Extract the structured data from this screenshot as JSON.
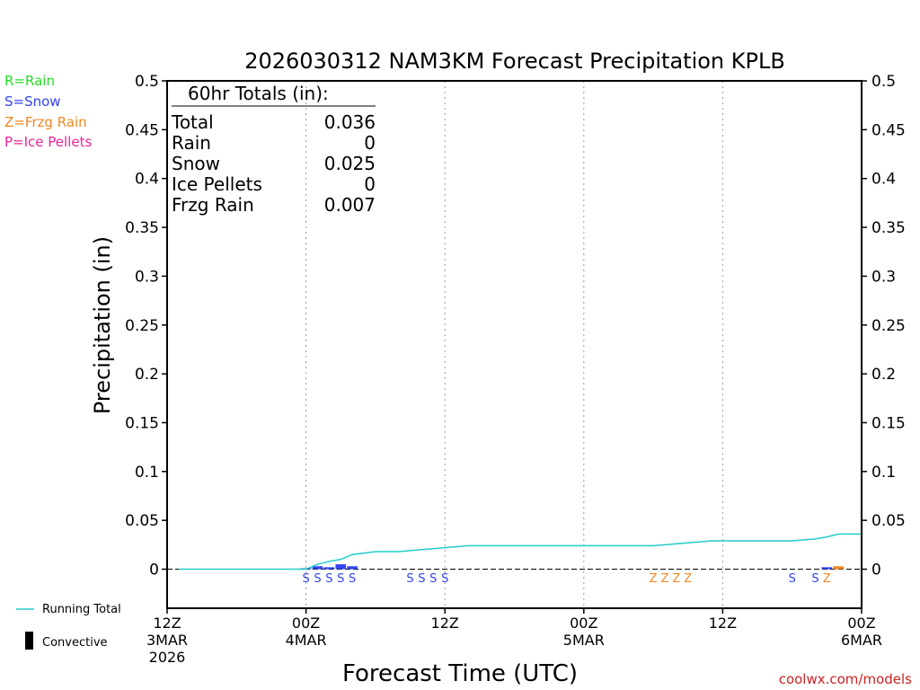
{
  "colors": {
    "rain": "#22dd22",
    "snow": "#3344ee",
    "frzg_rain": "#ee8822",
    "ice_pellets": "#ee2299",
    "running_total": "#22cccc",
    "axis": "#000000",
    "grid": "#999999",
    "credit": "#cc2222"
  },
  "legend_left": {
    "rain": "R=Rain",
    "snow": "S=Snow",
    "frzg_rain": "Z=Frzg Rain",
    "ice_pellets": "P=Ice Pellets"
  },
  "legend_bottom": {
    "running_total": "Running Total",
    "convective": "Convective"
  },
  "totals_box": {
    "header": "60hr Totals (in):",
    "rows": [
      {
        "label": "Total",
        "value": "0.036"
      },
      {
        "label": "Rain",
        "value": "0"
      },
      {
        "label": "Snow",
        "value": "0.025"
      },
      {
        "label": "Ice Pellets",
        "value": "0"
      },
      {
        "label": "Frzg Rain",
        "value": "0.007"
      }
    ]
  },
  "credit": "coolwx.com/models",
  "chart_data": {
    "type": "line",
    "title": "2026030312 NAM3KM Forecast Precipitation KPLB",
    "xlabel": "Forecast Time (UTC)",
    "ylabel": "Precipitation (in)",
    "x_unit": "forecast hour",
    "xlim": [
      0,
      60
    ],
    "ylim": [
      -0.04,
      0.5
    ],
    "y_ticks": [
      0,
      0.05,
      0.1,
      0.15,
      0.2,
      0.25,
      0.3,
      0.35,
      0.4,
      0.45,
      0.5
    ],
    "y_tick_labels": [
      "0",
      "0.05",
      "0.1",
      "0.15",
      "0.2",
      "0.25",
      "0.3",
      "0.35",
      "0.4",
      "0.45",
      "0.5"
    ],
    "x_ticks": [
      {
        "x": 0,
        "lines": [
          "12Z",
          "3MAR",
          "2026"
        ]
      },
      {
        "x": 12,
        "lines": [
          "00Z",
          "4MAR"
        ]
      },
      {
        "x": 24,
        "lines": [
          "12Z"
        ]
      },
      {
        "x": 36,
        "lines": [
          "00Z",
          "5MAR"
        ]
      },
      {
        "x": 48,
        "lines": [
          "12Z"
        ]
      },
      {
        "x": 60,
        "lines": [
          "00Z",
          "6MAR"
        ]
      }
    ],
    "vertical_grid_x": [
      12,
      24,
      36,
      48
    ],
    "running_total": {
      "name": "Running Total",
      "x": [
        1,
        12,
        13,
        14,
        15,
        16,
        18,
        19,
        20,
        21,
        22,
        23,
        24,
        25,
        26,
        28,
        30,
        32,
        34,
        36,
        38,
        40,
        42,
        43,
        44,
        45,
        46,
        47,
        48,
        50,
        52,
        54,
        55,
        56,
        57,
        58,
        59,
        60
      ],
      "y": [
        0,
        0,
        0.005,
        0.008,
        0.01,
        0.015,
        0.018,
        0.018,
        0.018,
        0.019,
        0.02,
        0.021,
        0.022,
        0.023,
        0.024,
        0.024,
        0.024,
        0.024,
        0.024,
        0.024,
        0.024,
        0.024,
        0.024,
        0.025,
        0.026,
        0.027,
        0.028,
        0.029,
        0.029,
        0.029,
        0.029,
        0.029,
        0.03,
        0.031,
        0.033,
        0.036,
        0.036,
        0.036
      ]
    },
    "hourly_bars": [
      {
        "x": 12,
        "value": 0.001,
        "type": "snow"
      },
      {
        "x": 13,
        "value": 0.003,
        "type": "snow"
      },
      {
        "x": 14,
        "value": 0.002,
        "type": "snow"
      },
      {
        "x": 15,
        "value": 0.005,
        "type": "snow"
      },
      {
        "x": 16,
        "value": 0.003,
        "type": "snow"
      },
      {
        "x": 57,
        "value": 0.002,
        "type": "snow"
      },
      {
        "x": 58,
        "value": 0.003,
        "type": "frzg_rain"
      }
    ],
    "ptype_markers": [
      {
        "x": 12,
        "label": "S",
        "type": "snow"
      },
      {
        "x": 13,
        "label": "S",
        "type": "snow"
      },
      {
        "x": 14,
        "label": "S",
        "type": "snow"
      },
      {
        "x": 15,
        "label": "S",
        "type": "snow"
      },
      {
        "x": 16,
        "label": "S",
        "type": "snow"
      },
      {
        "x": 21,
        "label": "S",
        "type": "snow"
      },
      {
        "x": 22,
        "label": "S",
        "type": "snow"
      },
      {
        "x": 23,
        "label": "S",
        "type": "snow"
      },
      {
        "x": 24,
        "label": "S",
        "type": "snow"
      },
      {
        "x": 42,
        "label": "Z",
        "type": "frzg_rain"
      },
      {
        "x": 43,
        "label": "Z",
        "type": "frzg_rain"
      },
      {
        "x": 44,
        "label": "Z",
        "type": "frzg_rain"
      },
      {
        "x": 45,
        "label": "Z",
        "type": "frzg_rain"
      },
      {
        "x": 54,
        "label": "S",
        "type": "snow"
      },
      {
        "x": 56,
        "label": "S",
        "type": "snow"
      },
      {
        "x": 57,
        "label": "Z",
        "type": "frzg_rain"
      }
    ]
  }
}
